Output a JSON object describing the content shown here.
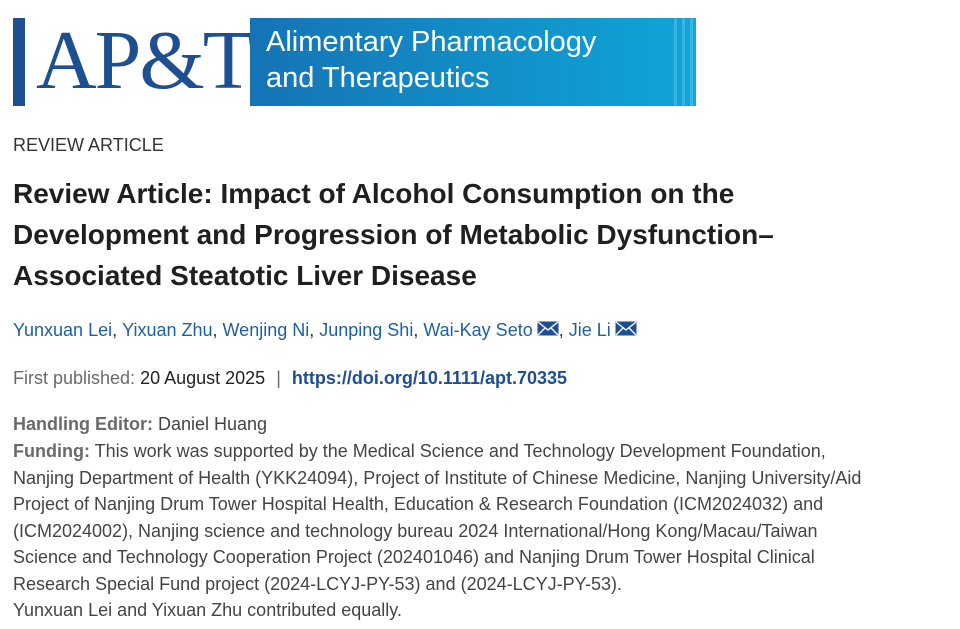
{
  "logo": {
    "mark": "AP&T",
    "journal_lines": [
      "Alimentary Pharmacology",
      "and Therapeutics"
    ]
  },
  "article_type": "REVIEW ARTICLE",
  "title_lines": [
    "Review Article: Impact of Alcohol Consumption on the",
    "Development and Progression of Metabolic Dysfunction–",
    "Associated Steatotic Liver Disease"
  ],
  "authors": [
    {
      "name": "Yunxuan Lei",
      "email": false
    },
    {
      "name": "Yixuan Zhu",
      "email": false
    },
    {
      "name": "Wenjing Ni",
      "email": false
    },
    {
      "name": "Junping Shi",
      "email": false
    },
    {
      "name": "Wai-Kay Seto",
      "email": true
    },
    {
      "name": "Jie Li",
      "email": true
    }
  ],
  "author_separator": ",",
  "publication": {
    "label": "First published:",
    "date": "20 August 2025",
    "divider": "|",
    "doi": "https://doi.org/10.1111/apt.70335"
  },
  "handling_editor": {
    "label": "Handling Editor:",
    "name": "Daniel Huang"
  },
  "funding": {
    "label": "Funding:",
    "lines": [
      "This work was supported by the Medical Science and Technology Development Foundation,",
      "Nanjing Department of Health (YKK24094), Project of Institute of Chinese Medicine, Nanjing University/Aid",
      "Project of Nanjing Drum Tower Hospital Health, Education & Research Foundation (ICM2024032) and",
      "(ICM2024002), Nanjing science and technology bureau 2024 International/Hong Kong/Macau/Taiwan",
      "Science and Technology Cooperation Project (202401046) and Nanjing Drum Tower Hospital Clinical",
      "Research Special Fund project (2024-LCYJ-PY-53) and (2024-LCYJ-PY-53)."
    ]
  },
  "note": "Yunxuan Lei and Yixuan Zhu contributed equally."
}
